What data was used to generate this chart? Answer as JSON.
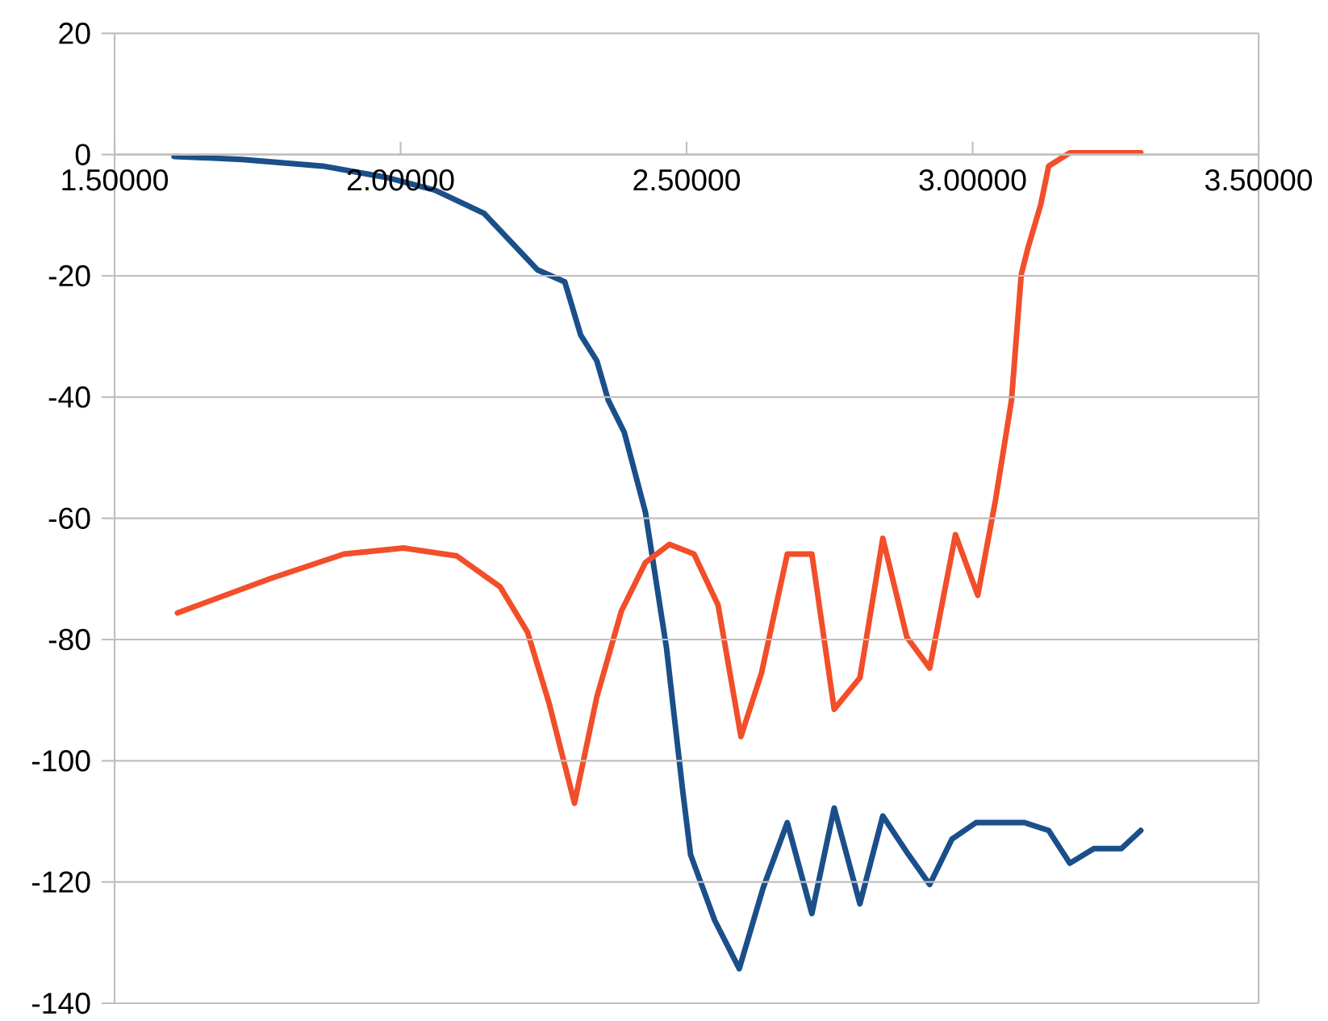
{
  "chart_data": {
    "type": "line",
    "xlim": [
      1.5,
      3.5
    ],
    "xticks": [
      {
        "value": 1.5,
        "label": "1.50000"
      },
      {
        "value": 2.0,
        "label": "2.00000"
      },
      {
        "value": 2.5,
        "label": "2.50000"
      },
      {
        "value": 3.0,
        "label": "3.00000"
      },
      {
        "value": 3.5,
        "label": "3.50000"
      }
    ],
    "ylim": [
      -140,
      20
    ],
    "yticks": [
      20,
      0,
      -20,
      -40,
      -60,
      -80,
      -100,
      -120,
      -140
    ],
    "grid": "y",
    "marker": "none",
    "line_style": "solid",
    "series": [
      {
        "color": "#1a4f8a",
        "x": [
          1.604,
          1.723,
          1.864,
          1.977,
          2.061,
          2.146,
          2.239,
          2.287,
          2.315,
          2.343,
          2.363,
          2.391,
          2.428,
          2.465,
          2.493,
          2.507,
          2.549,
          2.592,
          2.634,
          2.676,
          2.719,
          2.758,
          2.803,
          2.843,
          2.888,
          2.925,
          2.964,
          3.006,
          3.091,
          3.133,
          3.17,
          3.212,
          3.26,
          3.294
        ],
        "values": [
          -0.3,
          -0.8,
          -1.9,
          -3.8,
          -5.9,
          -9.7,
          -19,
          -21,
          -29.8,
          -34,
          -40.5,
          -45.8,
          -59,
          -81.5,
          -104.8,
          -115.5,
          -126.3,
          -134.3,
          -120.9,
          -110.2,
          -125.2,
          -107.8,
          -123.6,
          -109.1,
          -115.5,
          -120.4,
          -112.9,
          -110.2,
          -110.2,
          -111.5,
          -116.9,
          -114.5,
          -114.5,
          -111.5
        ]
      },
      {
        "color": "#f24e2a",
        "x": [
          1.61,
          1.771,
          1.901,
          2.005,
          2.098,
          2.174,
          2.222,
          2.259,
          2.304,
          2.343,
          2.386,
          2.428,
          2.47,
          2.513,
          2.555,
          2.595,
          2.631,
          2.676,
          2.719,
          2.758,
          2.803,
          2.843,
          2.885,
          2.925,
          2.97,
          3.009,
          3.04,
          3.068,
          3.085,
          3.097,
          3.119,
          3.133,
          3.17,
          3.294
        ],
        "values": [
          -75.6,
          -70,
          -65.9,
          -64.9,
          -66.2,
          -71.3,
          -78.8,
          -90.3,
          -107,
          -89.5,
          -75.3,
          -67.3,
          -64.3,
          -65.9,
          -74.3,
          -96,
          -85.5,
          -65.9,
          -65.9,
          -91.5,
          -86.3,
          -63.3,
          -79.6,
          -84.7,
          -62.7,
          -72.7,
          -57,
          -40.5,
          -19.8,
          -15.3,
          -8.3,
          -1.9,
          0.3,
          0.3
        ]
      }
    ]
  }
}
